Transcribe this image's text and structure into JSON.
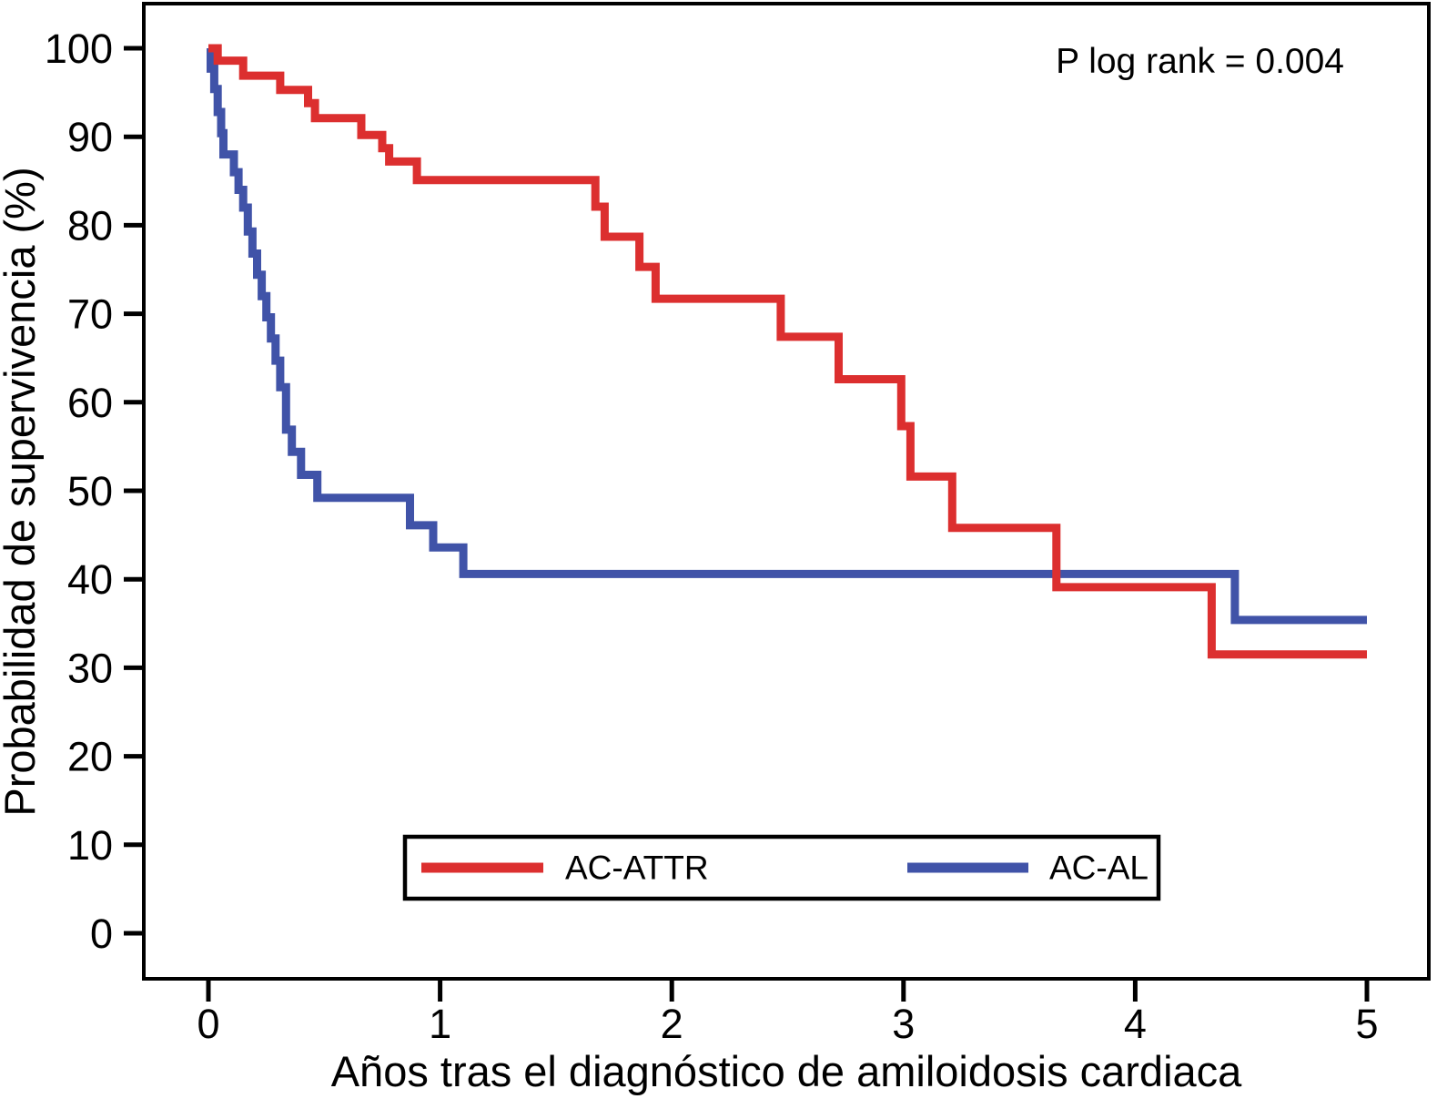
{
  "chart_data": {
    "type": "line",
    "subtype": "kaplan-meier-step-curve",
    "title": "",
    "xlabel": "Años tras el diagnóstico de amiloidosis cardiaca",
    "ylabel": "Probabilidad de supervivencia (%)",
    "annotation": "P log rank = 0.004",
    "xlim": [
      0,
      5
    ],
    "ylim": [
      0,
      100
    ],
    "x_ticks": [
      0,
      1,
      2,
      3,
      4,
      5
    ],
    "y_ticks": [
      0,
      10,
      20,
      30,
      40,
      50,
      60,
      70,
      80,
      90,
      100
    ],
    "x_end": 5,
    "grid": false,
    "legend_position": "bottom-center",
    "series": [
      {
        "name": "AC-ATTR",
        "color": "#dc2f2f",
        "steps": [
          [
            0,
            100
          ],
          [
            0.04,
            98.6
          ],
          [
            0.15,
            96.9
          ],
          [
            0.31,
            95.3
          ],
          [
            0.43,
            93.8
          ],
          [
            0.46,
            92.1
          ],
          [
            0.66,
            90.2
          ],
          [
            0.75,
            88.7
          ],
          [
            0.78,
            87.2
          ],
          [
            0.9,
            85.1
          ],
          [
            1.67,
            82.1
          ],
          [
            1.71,
            78.7
          ],
          [
            1.86,
            75.3
          ],
          [
            1.93,
            71.7
          ],
          [
            2.47,
            67.4
          ],
          [
            2.72,
            62.6
          ],
          [
            2.99,
            57.3
          ],
          [
            3.03,
            51.6
          ],
          [
            3.21,
            45.8
          ],
          [
            3.66,
            39.1
          ],
          [
            4.33,
            31.5
          ]
        ]
      },
      {
        "name": "AC-AL",
        "color": "#4053a8",
        "steps": [
          [
            0,
            100
          ],
          [
            0.01,
            97.7
          ],
          [
            0.025,
            95.4
          ],
          [
            0.04,
            92.8
          ],
          [
            0.055,
            90.4
          ],
          [
            0.065,
            88.0
          ],
          [
            0.11,
            86.0
          ],
          [
            0.13,
            84.0
          ],
          [
            0.15,
            82.0
          ],
          [
            0.17,
            79.3
          ],
          [
            0.19,
            76.8
          ],
          [
            0.21,
            74.4
          ],
          [
            0.23,
            72.0
          ],
          [
            0.25,
            69.6
          ],
          [
            0.27,
            67.2
          ],
          [
            0.29,
            64.7
          ],
          [
            0.31,
            61.7
          ],
          [
            0.335,
            56.9
          ],
          [
            0.36,
            54.4
          ],
          [
            0.4,
            51.8
          ],
          [
            0.47,
            49.2
          ],
          [
            0.87,
            46.1
          ],
          [
            0.97,
            43.6
          ],
          [
            1.1,
            40.6
          ],
          [
            4.43,
            35.4
          ]
        ]
      }
    ]
  }
}
